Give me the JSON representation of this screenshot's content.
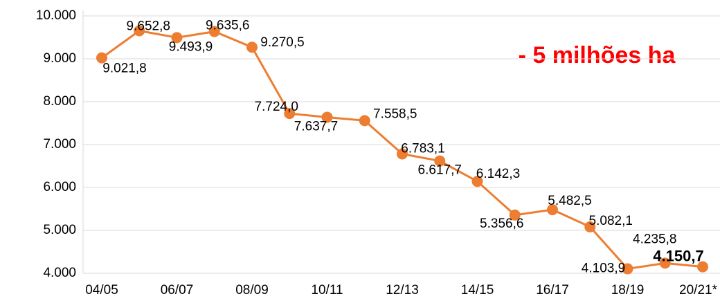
{
  "chart_data": {
    "type": "line",
    "annotation": "- 5 milhões ha",
    "categories": [
      "04/05",
      null,
      "06/07",
      null,
      "08/09",
      null,
      "10/11",
      null,
      "12/13",
      null,
      "14/15",
      null,
      "16/17",
      null,
      "18/19",
      null,
      "20/21*"
    ],
    "series": [
      {
        "name": "Área",
        "color": "#ed7d31",
        "values": [
          9021.8,
          9652.8,
          9493.9,
          9635.6,
          9270.5,
          7724.0,
          7637.7,
          7558.5,
          6783.1,
          6617.7,
          6142.3,
          5356.6,
          5482.5,
          5082.1,
          4103.9,
          4235.8,
          4150.7
        ],
        "value_labels": [
          "9.021,8",
          "9.652,8",
          "9.493,9",
          "9.635,6",
          "9.270,5",
          "7.724,0",
          "7.637,7",
          "7.558,5",
          "6.783,1",
          "6.617,7",
          "6.142,3",
          "5.356,6",
          "5.482,5",
          "5.082,1",
          "4.103,9",
          "4.235,8",
          "4.150,7"
        ]
      }
    ],
    "ylim": [
      4000,
      10000
    ],
    "yticks": [
      {
        "value": 4000,
        "label": "4.000"
      },
      {
        "value": 5000,
        "label": "5.000"
      },
      {
        "value": 6000,
        "label": "6.000"
      },
      {
        "value": 7000,
        "label": "7.000"
      },
      {
        "value": 8000,
        "label": "8.000"
      },
      {
        "value": 9000,
        "label": "9.000"
      },
      {
        "value": 10000,
        "label": "10.000"
      }
    ],
    "grid": true
  }
}
